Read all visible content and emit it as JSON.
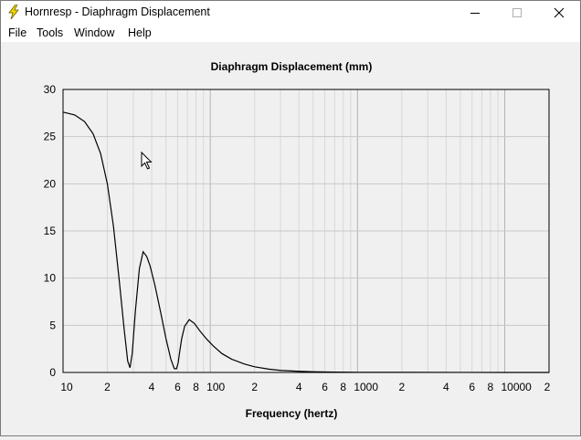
{
  "window": {
    "title": "Hornresp - Diaphragm Displacement",
    "minimize_icon": "minimize-icon",
    "maximize_icon": "maximize-icon",
    "close_icon": "close-icon",
    "app_icon": "lightning-bolt-icon"
  },
  "menu": {
    "items": [
      "File",
      "Tools",
      "Window",
      "Help"
    ]
  },
  "chart_data": {
    "type": "line",
    "title": "Diaphragm Displacement (mm)",
    "xlabel": "Frequency (hertz)",
    "ylabel": "",
    "x_scale": "log",
    "xlim": [
      10,
      20000
    ],
    "ylim": [
      0,
      30
    ],
    "yticks": [
      "0",
      "5",
      "10",
      "15",
      "20",
      "25",
      "30"
    ],
    "xtick_labels": [
      "10",
      "2",
      "4",
      "6",
      "8",
      "100",
      "2",
      "4",
      "6",
      "8",
      "1000",
      "2",
      "4",
      "6",
      "8",
      "10000",
      "2"
    ],
    "grid": true,
    "line_color": "#000000",
    "grid_color": "#c8c8c8",
    "series": [
      {
        "x": [
          10,
          12,
          14,
          16,
          18,
          20,
          22,
          24,
          26,
          27.5,
          28.5,
          29.5,
          31,
          33,
          35,
          37,
          39,
          42,
          46,
          50,
          54,
          57,
          59,
          60.5,
          62,
          64,
          67,
          72,
          78,
          85,
          95,
          105,
          120,
          140,
          170,
          200,
          250,
          300,
          400,
          500,
          700,
          1000,
          2000,
          5000,
          10000,
          20000
        ],
        "y": [
          27.6,
          27.3,
          26.6,
          25.3,
          23.2,
          20.0,
          15.5,
          10.0,
          4.6,
          1.2,
          0.5,
          2.0,
          6.5,
          11.0,
          12.8,
          12.3,
          11.3,
          9.3,
          6.4,
          3.6,
          1.4,
          0.4,
          0.4,
          1.0,
          2.2,
          3.6,
          4.9,
          5.6,
          5.2,
          4.4,
          3.5,
          2.8,
          2.0,
          1.4,
          0.9,
          0.6,
          0.35,
          0.22,
          0.12,
          0.07,
          0.04,
          0.02,
          0.01,
          0.005,
          0.002,
          0.001
        ]
      }
    ]
  }
}
